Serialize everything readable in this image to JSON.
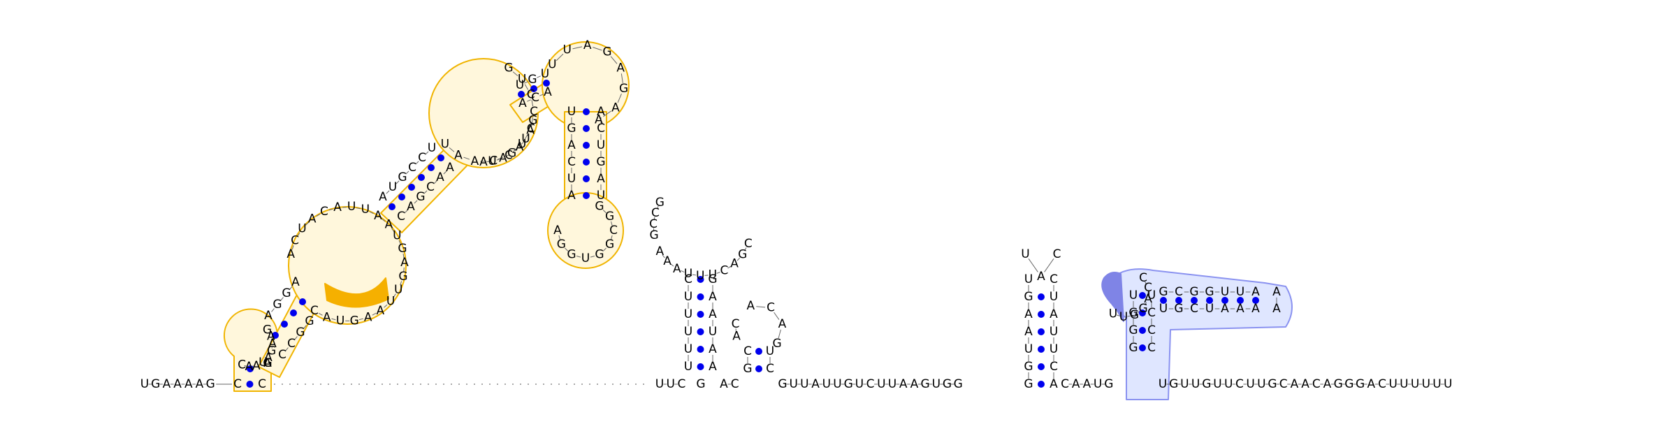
{
  "diagram": {
    "kind": "RNA secondary structure",
    "colors": {
      "orange_outline": "#f0b400",
      "orange_fill": "#fff7dc",
      "orange_highlight": "#f5b000",
      "blue_outline": "#8a92f0",
      "blue_fill": "#dfe6ff",
      "blue_highlight": "#7f84e6",
      "base_pair_dot": "#0000ee",
      "backbone": "#666666"
    },
    "structure_1": {
      "highlight": "ACA",
      "base_pairs": 13,
      "terminal_loop": "UUAAGAGAAUCGG"
    },
    "loop_2_label": "AAAUUUCAGC",
    "loop_3_label": "ACAG",
    "hairpin_4_label": "UAC",
    "structure_5": {
      "highlight": "UUGG",
      "base_pairs": 8
    },
    "five_prime_tail": "UGAAAAG",
    "three_prime_tail": "UGUUGUUCUUGCAACAGGGACUUUUUU",
    "linker_1": "UUC",
    "linker_2": "GUUAUUGUCUUAAGUGG",
    "linker_3": "CAAUG"
  }
}
